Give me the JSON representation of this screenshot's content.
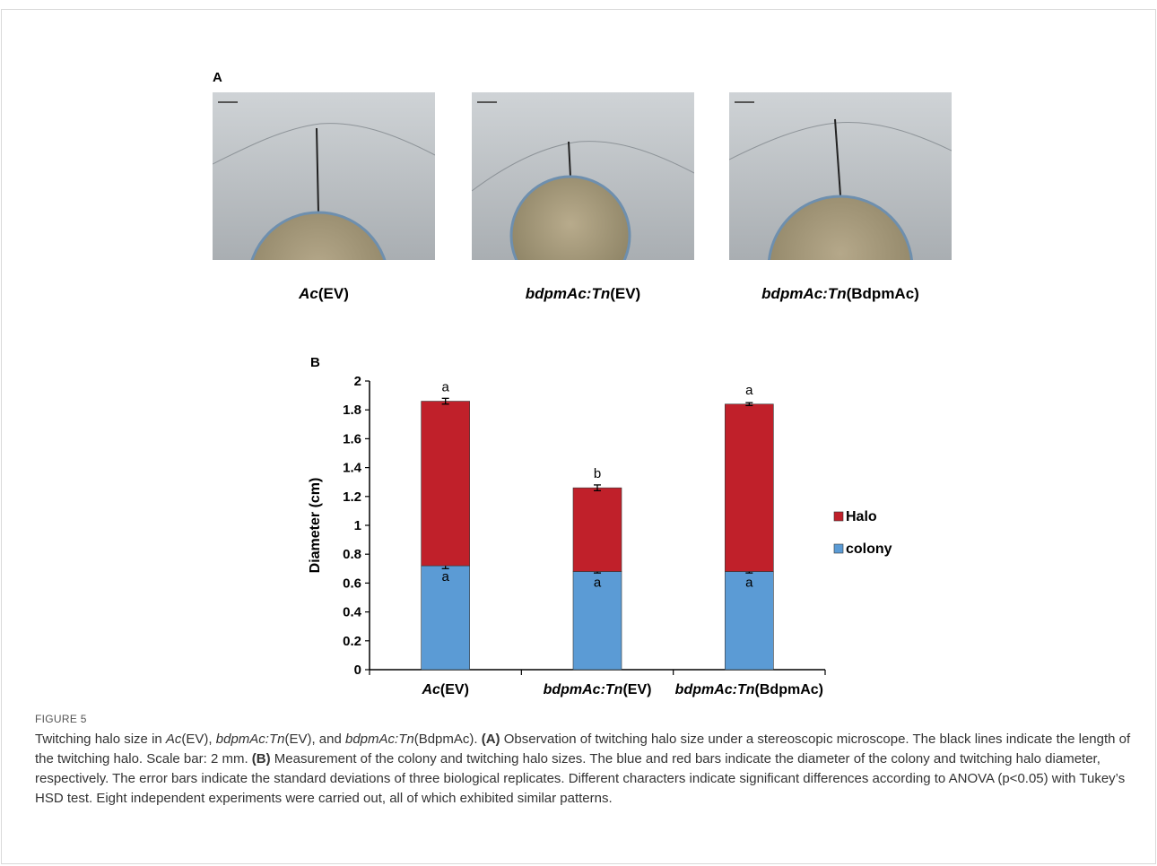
{
  "panel_a": {
    "label": "A",
    "photos": [
      {
        "caption_italic": "Ac",
        "caption_rest": "(EV)"
      },
      {
        "caption_italic": "bdpmAc:Tn",
        "caption_rest": "(EV)"
      },
      {
        "caption_italic": "bdpmAc:Tn",
        "caption_rest": "(BdpmAc)"
      }
    ]
  },
  "panel_b": {
    "label": "B"
  },
  "chart_data": {
    "type": "bar",
    "stacked": true,
    "categories": [
      "Ac(EV)",
      "bdpmAc:Tn(EV)",
      "bdpmAc:Tn(BdpmAc)"
    ],
    "series": [
      {
        "name": "colony",
        "color": "#5b9bd5",
        "values": [
          0.72,
          0.68,
          0.68
        ],
        "error": [
          0.02,
          0.01,
          0.01
        ],
        "letters": [
          "a",
          "a",
          "a"
        ]
      },
      {
        "name": "Halo",
        "color": "#c0202a",
        "values": [
          1.14,
          0.58,
          1.16
        ],
        "error": [
          0.02,
          0.02,
          0.01
        ],
        "letters": [
          "a",
          "b",
          "a"
        ]
      }
    ],
    "ylabel": "Diameter (cm)",
    "ylim": [
      0,
      2
    ],
    "yticks": [
      "0",
      "0.2",
      "0.4",
      "0.6",
      "0.8",
      "1",
      "1.2",
      "1.4",
      "1.6",
      "1.8",
      "2"
    ],
    "legend_position": "right",
    "legend": [
      "Halo",
      "colony"
    ],
    "grid": false
  },
  "figure": {
    "label": "FIGURE 5"
  }
}
